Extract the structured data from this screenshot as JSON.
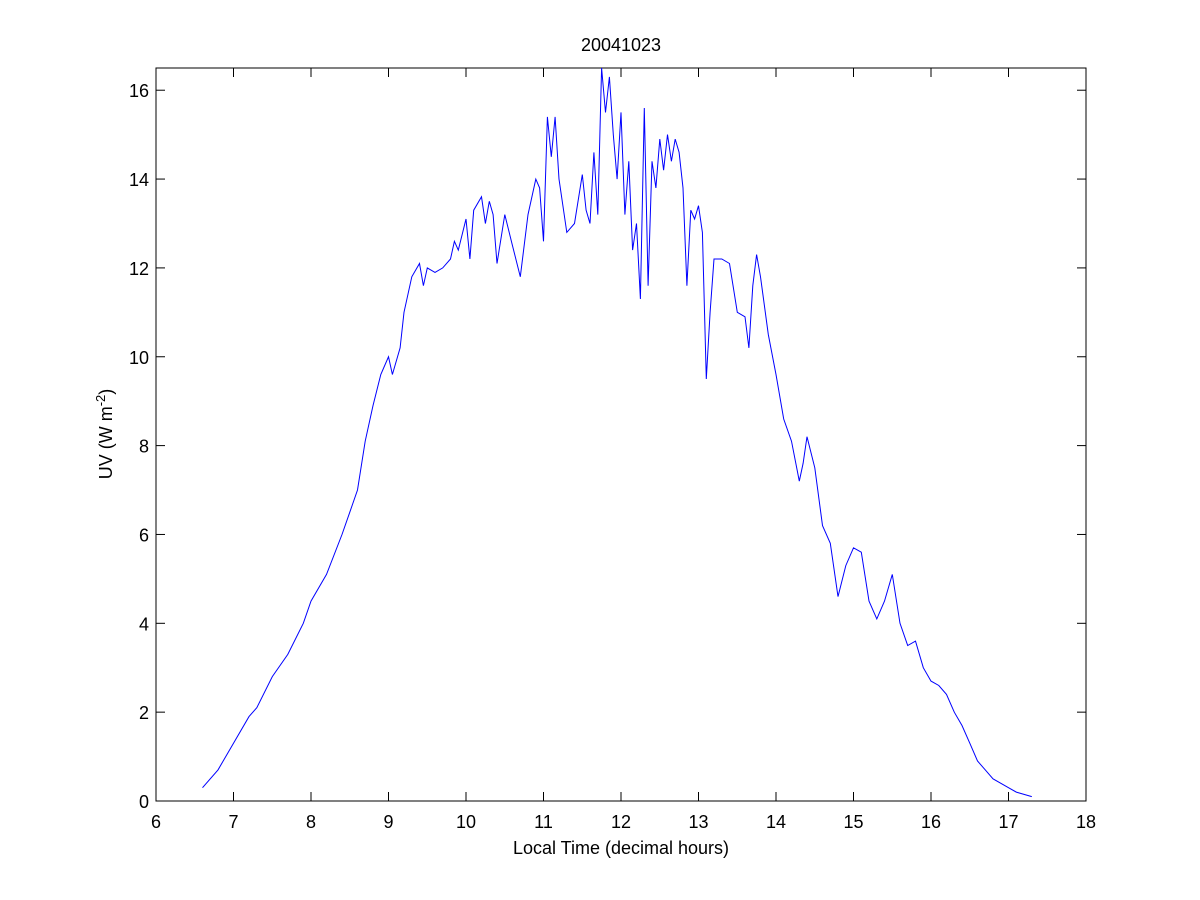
{
  "chart_data": {
    "type": "line",
    "title": "20041023",
    "xlabel": "Local Time (decimal hours)",
    "ylabel": {
      "prefix": "UV (W m",
      "superscript": "-2",
      "suffix": ")"
    },
    "xlim": [
      6,
      18
    ],
    "ylim": [
      0,
      16.5
    ],
    "xticks": [
      6,
      7,
      8,
      9,
      10,
      11,
      12,
      13,
      14,
      15,
      16,
      17,
      18
    ],
    "yticks": [
      0,
      2,
      4,
      6,
      8,
      10,
      12,
      14,
      16
    ],
    "grid": false,
    "line_color": "#0000ff",
    "series": [
      {
        "x": [
          6.6,
          6.8,
          7.0,
          7.2,
          7.3,
          7.5,
          7.7,
          7.9,
          8.0,
          8.2,
          8.4,
          8.5,
          8.6,
          8.7,
          8.8,
          8.9,
          9.0,
          9.05,
          9.15,
          9.2,
          9.3,
          9.4,
          9.45,
          9.5,
          9.6,
          9.7,
          9.8,
          9.85,
          9.9,
          10.0,
          10.05,
          10.1,
          10.2,
          10.25,
          10.3,
          10.35,
          10.4,
          10.5,
          10.6,
          10.7,
          10.8,
          10.9,
          10.95,
          11.0,
          11.05,
          11.1,
          11.15,
          11.2,
          11.3,
          11.4,
          11.5,
          11.55,
          11.6,
          11.65,
          11.7,
          11.75,
          11.8,
          11.85,
          11.9,
          11.95,
          12.0,
          12.05,
          12.1,
          12.15,
          12.2,
          12.25,
          12.3,
          12.35,
          12.4,
          12.45,
          12.5,
          12.55,
          12.6,
          12.65,
          12.7,
          12.75,
          12.8,
          12.85,
          12.9,
          12.95,
          13.0,
          13.05,
          13.1,
          13.15,
          13.2,
          13.3,
          13.4,
          13.5,
          13.6,
          13.65,
          13.7,
          13.75,
          13.8,
          13.9,
          14.0,
          14.1,
          14.2,
          14.3,
          14.35,
          14.4,
          14.5,
          14.6,
          14.7,
          14.8,
          14.9,
          15.0,
          15.1,
          15.2,
          15.3,
          15.4,
          15.5,
          15.6,
          15.7,
          15.8,
          15.9,
          16.0,
          16.1,
          16.2,
          16.3,
          16.4,
          16.5,
          16.6,
          16.7,
          16.8,
          17.0,
          17.1,
          17.3
        ],
        "y": [
          0.3,
          0.7,
          1.3,
          1.9,
          2.1,
          2.8,
          3.3,
          4.0,
          4.5,
          5.1,
          6.0,
          6.5,
          7.0,
          8.1,
          8.9,
          9.6,
          10.0,
          9.6,
          10.2,
          11.0,
          11.8,
          12.1,
          11.6,
          12.0,
          11.9,
          12.0,
          12.2,
          12.6,
          12.4,
          13.1,
          12.2,
          13.3,
          13.6,
          13.0,
          13.5,
          13.2,
          12.1,
          13.2,
          12.5,
          11.8,
          13.2,
          14.0,
          13.8,
          12.6,
          15.4,
          14.5,
          15.4,
          14.0,
          12.8,
          13.0,
          14.1,
          13.3,
          13.0,
          14.6,
          13.2,
          16.5,
          15.5,
          16.3,
          15.0,
          14.0,
          15.5,
          13.2,
          14.4,
          12.4,
          13.0,
          11.3,
          15.6,
          11.6,
          14.4,
          13.8,
          14.9,
          14.2,
          15.0,
          14.4,
          14.9,
          14.6,
          13.8,
          11.6,
          13.3,
          13.1,
          13.4,
          12.8,
          9.5,
          11.0,
          12.2,
          12.2,
          12.1,
          11.0,
          10.9,
          10.2,
          11.6,
          12.3,
          11.8,
          10.5,
          9.6,
          8.6,
          8.1,
          7.2,
          7.6,
          8.2,
          7.5,
          6.2,
          5.8,
          4.6,
          5.3,
          5.7,
          5.6,
          4.5,
          4.1,
          4.5,
          5.1,
          4.0,
          3.5,
          3.6,
          3.0,
          2.7,
          2.6,
          2.4,
          2.0,
          1.7,
          1.3,
          0.9,
          0.7,
          0.5,
          0.3,
          0.2,
          0.1
        ]
      }
    ]
  }
}
